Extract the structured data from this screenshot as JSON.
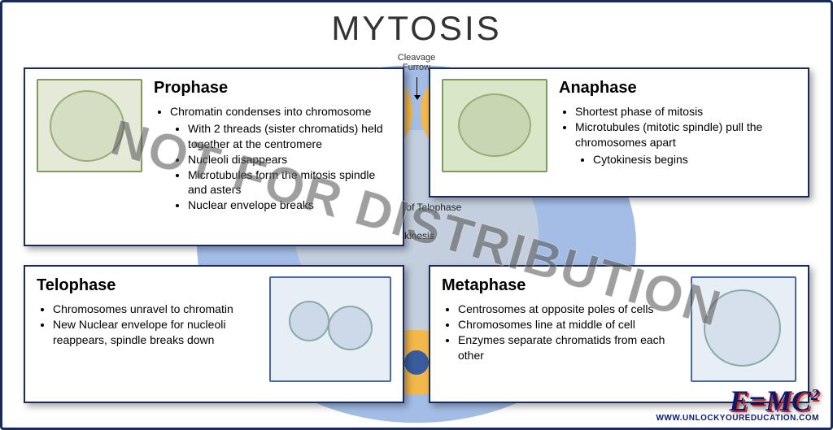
{
  "title": "MYTOSIS",
  "bg": {
    "cleavage_label": "Cleavage\nFurrow",
    "stage_label": "e stage of Telophase",
    "cytokinesis_label": "okinesis"
  },
  "cards": {
    "prophase": {
      "title": "Prophase",
      "bullets": [
        "Chromatin condenses into chromosome",
        [
          "With 2 threads (sister chromatids) held together at the centromere",
          "Nucleoli disappears",
          "Microtubules form the mitosis spindle and asters",
          "Nuclear envelope breaks"
        ]
      ],
      "thumb_colors": {
        "bg": "#e5ead8",
        "border": "#7f9a5d"
      }
    },
    "anaphase": {
      "title": "Anaphase",
      "bullets": [
        "Shortest phase of mitosis",
        "Microtubules (mitotic spindle) pull the chromosomes apart",
        [
          "Cytokinesis begins"
        ]
      ],
      "thumb_colors": {
        "bg": "#d9e6c8",
        "border": "#7f9a5d"
      }
    },
    "telophase": {
      "title": "Telophase",
      "bullets": [
        "Chromosomes unravel to chromatin",
        "New Nuclear envelope for nucleoli reappears, spindle breaks down"
      ],
      "thumb_colors": {
        "bg": "#e8eef5",
        "border": "#4a6aa5"
      }
    },
    "metaphase": {
      "title": "Metaphase",
      "bullets": [
        "Centrosomes at opposite poles of cells",
        "Chromosomes line at middle of cell",
        "Enzymes separate chromatids from each other"
      ],
      "thumb_colors": {
        "bg": "#e8eef5",
        "border": "#4a6aa5"
      }
    }
  },
  "watermark": "NOT FOR DISTRIBUTION",
  "logo": {
    "formula_html": "E=MC",
    "exponent": "2",
    "url": "WWW.UNLOCKYOUREDUCATION.COM"
  },
  "colors": {
    "frame": "#1a2a5a",
    "oval": "#a3bde6",
    "furrow": "#f2b84b",
    "logo_text": "#0a1a6a",
    "logo_shadow": "#d02020"
  }
}
